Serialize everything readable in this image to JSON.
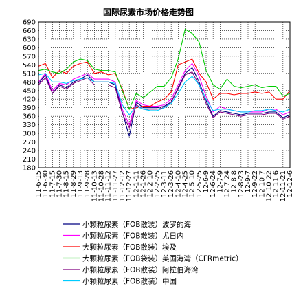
{
  "chart_data": {
    "type": "line",
    "title": "国际尿素市场价格走势图",
    "xlabel": "",
    "ylabel": "",
    "ylim": [
      180,
      690
    ],
    "y_ticks": [
      180,
      210,
      240,
      270,
      300,
      330,
      360,
      390,
      420,
      450,
      480,
      510,
      540,
      570,
      600,
      630,
      660,
      690
    ],
    "grid": true,
    "legend_position": "bottom",
    "categories": [
      "11-6-15",
      "11-6-30",
      "11-7-15",
      "11-7-30",
      "11-8-15",
      "11-8-29",
      "11-9-13",
      "11-9-28",
      "11-10-13",
      "11-10-28",
      "11-11-12",
      "11-11-27",
      "11-12-12",
      "11-12-27",
      "12-1-11",
      "12-1-26",
      "12-2-10",
      "12-2-25",
      "12-3-11",
      "12-3-26",
      "12-4-10",
      "12-4-25",
      "12-5-10",
      "12-5-25",
      "12-6-9",
      "12-6-24",
      "12-7-9",
      "12-7-24",
      "12-8-8",
      "12-8-23",
      "12-9-7",
      "12-9-22",
      "12-10-7",
      "12-10-22",
      "12-11-6",
      "12-11-21",
      "12-12-6"
    ],
    "series": [
      {
        "name": "小颗粒尿素（FOB散装）波罗的海",
        "color": "#000080",
        "values": [
          475,
          505,
          440,
          470,
          460,
          480,
          490,
          505,
          480,
          480,
          480,
          470,
          375,
          290,
          410,
          390,
          390,
          390,
          395,
          410,
          460,
          510,
          530,
          480,
          415,
          360,
          380,
          375,
          370,
          365,
          370,
          370,
          370,
          375,
          375,
          355,
          365
        ]
      },
      {
        "name": "小颗粒尿素（FOB散装）尤日内",
        "color": "#ff00ff",
        "values": [
          480,
          510,
          450,
          475,
          470,
          490,
          500,
          510,
          490,
          490,
          490,
          480,
          385,
          330,
          415,
          400,
          395,
          395,
          400,
          420,
          470,
          520,
          545,
          500,
          430,
          375,
          395,
          385,
          380,
          375,
          375,
          375,
          375,
          385,
          385,
          365,
          375
        ]
      },
      {
        "name": "大颗粒尿素（FOB散装）埃及",
        "color": "#ff0000",
        "values": [
          535,
          545,
          495,
          520,
          510,
          535,
          545,
          550,
          510,
          515,
          505,
          510,
          455,
          385,
          390,
          395,
          395,
          410,
          420,
          445,
          540,
          550,
          560,
          510,
          480,
          420,
          440,
          440,
          435,
          440,
          440,
          445,
          440,
          445,
          420,
          420,
          450
        ]
      },
      {
        "name": "大颗粒尿素（FOB袋装）美国海湾（CFRmetric）",
        "color": "#00cc00",
        "values": [
          520,
          525,
          515,
          510,
          525,
          550,
          560,
          555,
          525,
          520,
          520,
          515,
          450,
          385,
          440,
          425,
          445,
          465,
          465,
          495,
          560,
          665,
          650,
          620,
          520,
          470,
          455,
          490,
          465,
          460,
          465,
          470,
          460,
          465,
          465,
          430,
          440
        ]
      },
      {
        "name": "小颗粒尿素（FOB散装）阿拉伯海湾",
        "color": "#800080",
        "values": [
          470,
          495,
          440,
          465,
          455,
          475,
          485,
          495,
          470,
          470,
          470,
          460,
          370,
          320,
          400,
          385,
          385,
          385,
          390,
          410,
          455,
          505,
          515,
          470,
          405,
          355,
          375,
          370,
          365,
          360,
          365,
          365,
          365,
          370,
          370,
          350,
          360
        ]
      },
      {
        "name": "小颗粒尿素（FOB散装）中国",
        "color": "#00ccff",
        "values": [
          505,
          510,
          480,
          480,
          475,
          485,
          490,
          495,
          480,
          480,
          480,
          475,
          400,
          365,
          395,
          385,
          380,
          380,
          390,
          405,
          440,
          480,
          500,
          470,
          420,
          380,
          385,
          385,
          380,
          375,
          375,
          380,
          380,
          385,
          380,
          375,
          385
        ]
      }
    ]
  }
}
